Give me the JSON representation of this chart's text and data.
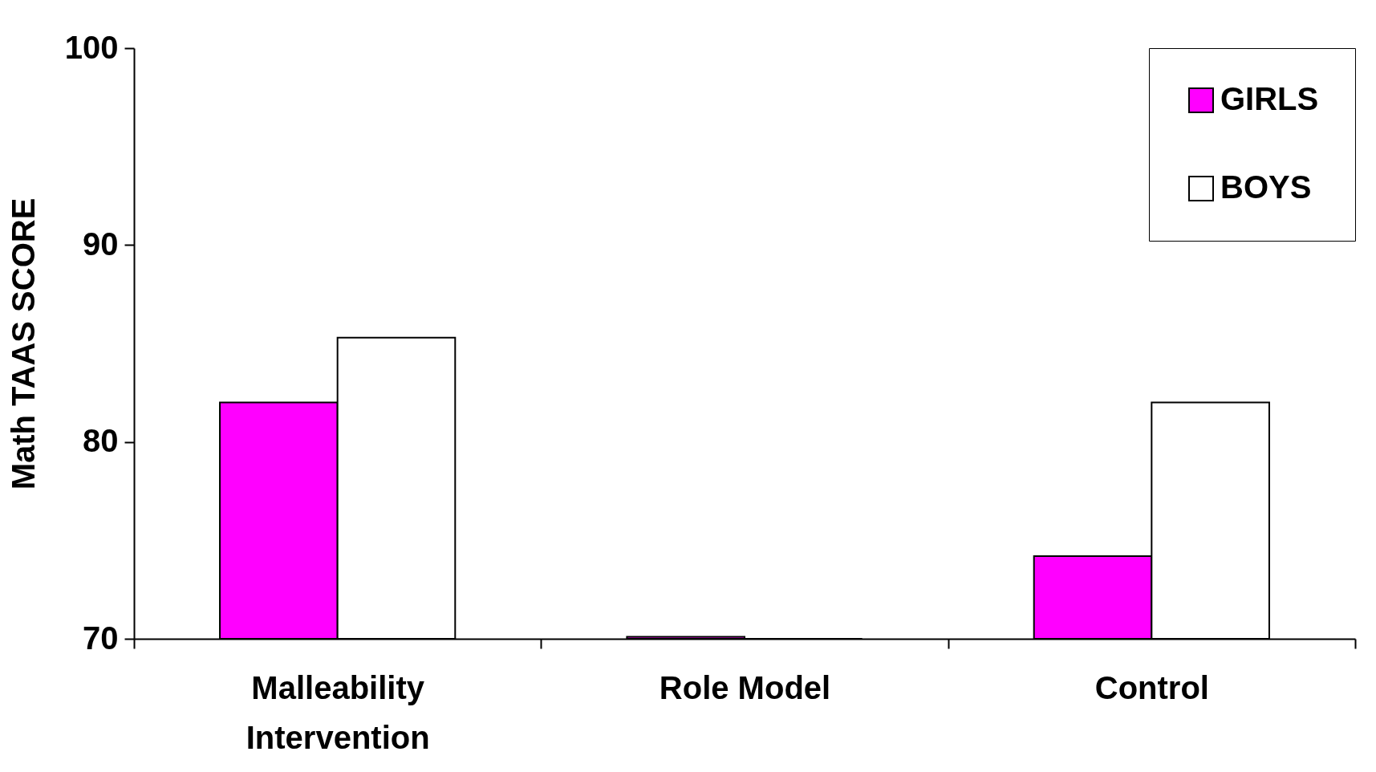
{
  "chart_data": {
    "type": "bar",
    "ylabel": "Math TAAS SCORE",
    "categories": [
      "Malleability Intervention",
      "Role Model",
      "Control"
    ],
    "series": [
      {
        "name": "GIRLS",
        "color": "#ff00ff",
        "values": [
          82,
          70.1,
          74.2
        ]
      },
      {
        "name": "BOYS",
        "color": "#ffffff",
        "values": [
          85.3,
          70,
          82
        ]
      }
    ],
    "ylim": [
      70,
      100
    ],
    "yticks": [
      70,
      80,
      90,
      100
    ],
    "grid": false,
    "legend": "top right"
  }
}
